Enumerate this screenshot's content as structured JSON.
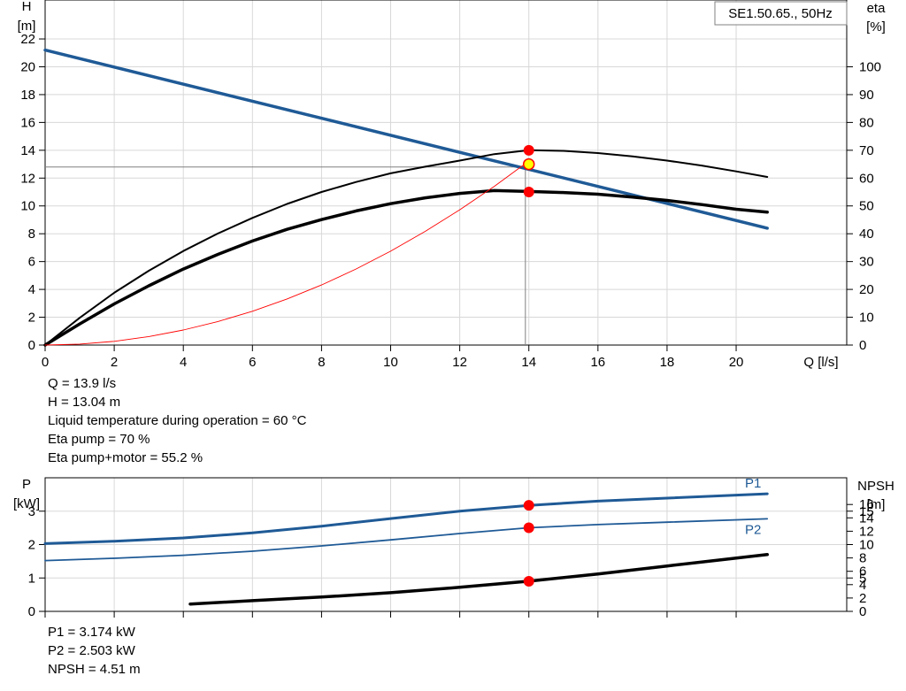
{
  "chart_data": [
    {
      "type": "line",
      "title": "SE1.50.65., 50Hz",
      "xlabel": "Q [l/s]",
      "ylabel_left": [
        "H",
        "[m]"
      ],
      "ylabel_right": [
        "eta",
        "[%]"
      ],
      "xlim": [
        0,
        23.2
      ],
      "ylim_left": [
        0,
        24.8
      ],
      "ylim_right": [
        0,
        124
      ],
      "x_ticks": [
        0,
        2,
        4,
        6,
        8,
        10,
        12,
        14,
        16,
        18,
        20
      ],
      "y_ticks_left": [
        0,
        2,
        4,
        6,
        8,
        10,
        12,
        14,
        16,
        18,
        20,
        22
      ],
      "y_ticks_right": [
        0,
        10,
        20,
        30,
        40,
        50,
        60,
        70,
        80,
        90,
        100
      ],
      "grid": true,
      "series": [
        {
          "axis": "left",
          "color": "#1f5a96",
          "width": 3.5,
          "points": [
            [
              0,
              21.2
            ],
            [
              20.9,
              8.4
            ]
          ]
        },
        {
          "axis": "right",
          "color": "#000000",
          "width": 2,
          "points": [
            [
              0,
              0
            ],
            [
              1,
              9.8
            ],
            [
              2,
              18.8
            ],
            [
              3,
              26.7
            ],
            [
              4,
              33.8
            ],
            [
              5,
              40.1
            ],
            [
              6,
              45.7
            ],
            [
              7,
              50.7
            ],
            [
              8,
              55.0
            ],
            [
              9,
              58.6
            ],
            [
              10,
              61.7
            ],
            [
              11,
              64.1
            ],
            [
              12,
              66.3
            ],
            [
              13,
              68.6
            ],
            [
              14,
              70.0
            ],
            [
              15,
              69.8
            ],
            [
              16,
              69.0
            ],
            [
              17,
              67.8
            ],
            [
              18,
              66.3
            ],
            [
              19,
              64.5
            ],
            [
              20,
              62.4
            ],
            [
              20.9,
              60.4
            ]
          ]
        },
        {
          "axis": "right",
          "color": "#000000",
          "width": 3.5,
          "points": [
            [
              0,
              0
            ],
            [
              1,
              7.6
            ],
            [
              2,
              14.8
            ],
            [
              3,
              21.3
            ],
            [
              4,
              27.3
            ],
            [
              5,
              32.6
            ],
            [
              6,
              37.4
            ],
            [
              7,
              41.6
            ],
            [
              8,
              45.1
            ],
            [
              9,
              48.2
            ],
            [
              10,
              50.8
            ],
            [
              11,
              52.9
            ],
            [
              12,
              54.5
            ],
            [
              13,
              55.5
            ],
            [
              14,
              55.2
            ],
            [
              15,
              54.8
            ],
            [
              16,
              54.2
            ],
            [
              17,
              53.2
            ],
            [
              18,
              52.0
            ],
            [
              19,
              50.5
            ],
            [
              20,
              48.8
            ],
            [
              20.9,
              47.8
            ]
          ]
        },
        {
          "axis": "left",
          "color": "#ff0000",
          "width": 0.9,
          "points": [
            [
              0,
              0
            ],
            [
              1,
              0.07
            ],
            [
              2,
              0.27
            ],
            [
              3,
              0.61
            ],
            [
              4,
              1.08
            ],
            [
              5,
              1.69
            ],
            [
              6,
              2.43
            ],
            [
              7,
              3.31
            ],
            [
              8,
              4.32
            ],
            [
              9,
              5.47
            ],
            [
              10,
              6.75
            ],
            [
              11,
              8.17
            ],
            [
              12,
              9.72
            ],
            [
              13,
              11.41
            ],
            [
              13.9,
              13.04
            ]
          ]
        }
      ],
      "guide_lines": {
        "x": 13.9,
        "y": 12.8,
        "color": "#808080"
      },
      "markers": [
        {
          "axis": "left",
          "x": 14.0,
          "y": 14.0,
          "fill": "#ff0000"
        },
        {
          "axis": "left",
          "x": 14.0,
          "y": 11.0,
          "fill": "#ff0000"
        },
        {
          "axis": "left",
          "x": 14.0,
          "y": 13.0,
          "fill": "#ffff00",
          "stroke": "#ff0000"
        }
      ]
    },
    {
      "type": "line",
      "xlim": [
        0,
        23.2
      ],
      "ylabel_left": [
        "P",
        "[kW]"
      ],
      "ylabel_right": [
        "NPSH",
        "[m]"
      ],
      "ylim_left": [
        0,
        4.0
      ],
      "ylim_right": [
        0,
        20
      ],
      "y_ticks_left": [
        0,
        1,
        2,
        3
      ],
      "y_ticks_right": [
        0,
        2,
        4,
        5,
        6,
        8,
        10,
        12,
        14,
        15,
        16
      ],
      "grid": true,
      "series": [
        {
          "name": "P1",
          "axis": "left",
          "color": "#1f5a96",
          "width": 3,
          "points": [
            [
              0,
              2.03
            ],
            [
              2,
              2.1
            ],
            [
              4,
              2.2
            ],
            [
              6,
              2.35
            ],
            [
              8,
              2.55
            ],
            [
              10,
              2.78
            ],
            [
              12,
              3.0
            ],
            [
              14,
              3.174
            ],
            [
              16,
              3.3
            ],
            [
              18,
              3.39
            ],
            [
              20.9,
              3.52
            ]
          ]
        },
        {
          "name": "P2",
          "axis": "left",
          "color": "#1f5a96",
          "width": 1.8,
          "points": [
            [
              0,
              1.52
            ],
            [
              2,
              1.59
            ],
            [
              4,
              1.68
            ],
            [
              6,
              1.8
            ],
            [
              8,
              1.96
            ],
            [
              10,
              2.14
            ],
            [
              12,
              2.33
            ],
            [
              14,
              2.503
            ],
            [
              16,
              2.6
            ],
            [
              18,
              2.67
            ],
            [
              20.9,
              2.77
            ]
          ]
        },
        {
          "axis": "right",
          "color": "#000000",
          "width": 3.5,
          "points": [
            [
              4.2,
              1.1
            ],
            [
              6,
              1.6
            ],
            [
              8,
              2.15
            ],
            [
              10,
              2.8
            ],
            [
              12,
              3.6
            ],
            [
              14,
              4.51
            ],
            [
              16,
              5.6
            ],
            [
              18,
              6.8
            ],
            [
              20.9,
              8.5
            ]
          ]
        }
      ],
      "markers": [
        {
          "axis": "left",
          "x": 14.0,
          "y": 3.174,
          "fill": "#ff0000"
        },
        {
          "axis": "left",
          "x": 14.0,
          "y": 2.503,
          "fill": "#ff0000"
        },
        {
          "axis": "right",
          "x": 14.0,
          "y": 4.51,
          "fill": "#ff0000"
        }
      ]
    }
  ],
  "info_top": [
    "Q = 13.9 l/s",
    "H = 13.04 m",
    "Liquid temperature during operation = 60 °C",
    "Eta pump = 70 %",
    "Eta pump+motor = 55.2 %"
  ],
  "info_bottom": [
    "P1 = 3.174 kW",
    "P2 = 2.503 kW",
    "NPSH = 4.51 m"
  ]
}
